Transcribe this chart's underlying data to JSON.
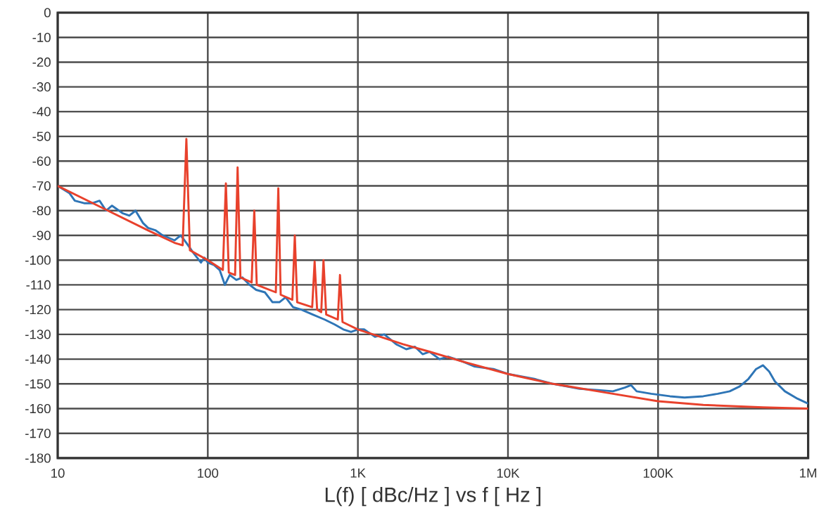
{
  "chart_data": {
    "type": "line",
    "xlabel": "L(f) [ dBc/Hz ]  vs  f  [ Hz ]",
    "log": "x",
    "grid": true,
    "marker": "none",
    "line_style": "solid",
    "xlim": [
      10,
      1000000
    ],
    "xticks": [
      {
        "value": 10,
        "label": "10"
      },
      {
        "value": 100,
        "label": "100"
      },
      {
        "value": 1000,
        "label": "1K"
      },
      {
        "value": 10000,
        "label": "10K"
      },
      {
        "value": 100000,
        "label": "100K"
      },
      {
        "value": 1000000,
        "label": "1M"
      }
    ],
    "ylim": [
      -180,
      0
    ],
    "yticks": [
      0,
      -10,
      -20,
      -30,
      -40,
      -50,
      -60,
      -70,
      -80,
      -90,
      -100,
      -110,
      -120,
      -130,
      -140,
      -150,
      -160,
      -170,
      -180
    ],
    "series": [
      {
        "color": "#2e75b6",
        "x": [
          10,
          12,
          13,
          15,
          17,
          19,
          21,
          23,
          27,
          30,
          33,
          37,
          40,
          45,
          50,
          55,
          60,
          66,
          72,
          80,
          90,
          95,
          100,
          110,
          120,
          130,
          140,
          155,
          170,
          190,
          210,
          240,
          270,
          300,
          330,
          370,
          420,
          500,
          600,
          700,
          800,
          900,
          1000,
          1100,
          1300,
          1500,
          1800,
          2100,
          2400,
          2700,
          3000,
          3500,
          4000,
          5000,
          6000,
          8000,
          10000,
          15000,
          20000,
          30000,
          40000,
          50000,
          60000,
          66000,
          72000,
          90000,
          120000,
          150000,
          200000,
          250000,
          300000,
          350000,
          400000,
          450000,
          500000,
          550000,
          600000,
          700000,
          850000,
          1000000
        ],
        "values": [
          -70,
          -73,
          -76,
          -77,
          -77,
          -76,
          -80,
          -78,
          -81,
          -82,
          -80,
          -85,
          -87,
          -88,
          -90,
          -91,
          -92,
          -90,
          -93,
          -97,
          -101,
          -99,
          -101,
          -102,
          -104,
          -110,
          -106,
          -108,
          -107,
          -110,
          -112,
          -113,
          -117,
          -117,
          -115,
          -119,
          -120,
          -122,
          -124,
          -126,
          -128,
          -129,
          -128,
          -128,
          -131,
          -130,
          -134,
          -136,
          -135,
          -138,
          -137,
          -140,
          -139,
          -141,
          -143,
          -144,
          -146,
          -148,
          -150,
          -152,
          -152.5,
          -153,
          -151.5,
          -150.5,
          -153,
          -154,
          -155,
          -155.5,
          -155,
          -154,
          -153,
          -151,
          -148,
          -144,
          -142.5,
          -145,
          -149,
          -153,
          -156,
          -158
        ]
      },
      {
        "color": "#e8412c",
        "x": [
          10,
          20,
          40,
          60,
          68,
          72,
          76,
          100,
          126,
          132,
          138,
          152,
          158,
          165,
          196,
          204,
          212,
          284,
          295,
          306,
          366,
          380,
          394,
          496,
          515,
          535,
          570,
          590,
          615,
          735,
          760,
          790,
          1000,
          2000,
          3000,
          5000,
          10000,
          20000,
          50000,
          100000,
          200000,
          500000,
          1000000
        ],
        "values": [
          -70,
          -79,
          -88,
          -93,
          -94,
          -51,
          -96,
          -100,
          -104,
          -69,
          -105,
          -106,
          -62.5,
          -107,
          -109,
          -80,
          -110,
          -113,
          -71,
          -114,
          -116,
          -90,
          -117,
          -119,
          -100.5,
          -120,
          -121,
          -100,
          -122,
          -124,
          -106,
          -125,
          -128,
          -134,
          -137,
          -141,
          -146,
          -150,
          -154,
          -157,
          -158.5,
          -159.5,
          -160
        ]
      }
    ]
  }
}
